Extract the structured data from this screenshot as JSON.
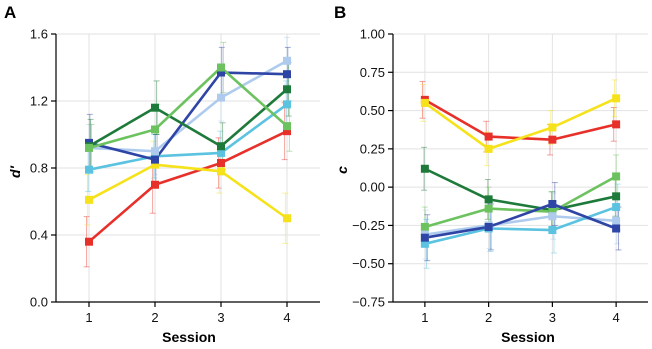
{
  "chart_data": [
    {
      "panel": "A",
      "type": "line",
      "title": "",
      "xlabel": "Session",
      "ylabel": "d′",
      "x": [
        1,
        2,
        3,
        4
      ],
      "xlim": [
        0.5,
        4.5
      ],
      "ylim": [
        0.0,
        1.6
      ],
      "yticks": [
        0.0,
        0.4,
        0.8,
        1.2,
        1.6
      ],
      "ytick_labels": [
        "0.0",
        "0.4",
        "0.8",
        "1.2",
        "1.6"
      ],
      "xtick_labels": [
        "1",
        "2",
        "3",
        "4"
      ],
      "grid": true,
      "series": [
        {
          "color": "#e8302a",
          "values": [
            0.36,
            0.7,
            0.83,
            1.02
          ],
          "err": [
            0.15,
            0.17,
            0.15,
            0.17
          ]
        },
        {
          "color": "#f5e21a",
          "values": [
            0.61,
            0.82,
            0.78,
            0.5
          ],
          "err": [
            0.15,
            0.14,
            0.13,
            0.15
          ]
        },
        {
          "color": "#5bc3e0",
          "values": [
            0.79,
            0.87,
            0.89,
            1.18
          ],
          "err": [
            0.13,
            0.13,
            0.13,
            0.14
          ]
        },
        {
          "color": "#aecbee",
          "values": [
            0.92,
            0.9,
            1.22,
            1.44
          ],
          "err": [
            0.14,
            0.14,
            0.14,
            0.14
          ]
        },
        {
          "color": "#2e45a6",
          "values": [
            0.95,
            0.85,
            1.37,
            1.36
          ],
          "err": [
            0.17,
            0.15,
            0.15,
            0.16
          ]
        },
        {
          "color": "#1e7a3a",
          "values": [
            0.93,
            1.16,
            0.93,
            1.27
          ],
          "err": [
            0.16,
            0.16,
            0.14,
            0.16
          ]
        },
        {
          "color": "#6cc25e",
          "values": [
            0.92,
            1.03,
            1.4,
            1.05
          ],
          "err": [
            0.14,
            0.15,
            0.15,
            0.15
          ]
        }
      ]
    },
    {
      "panel": "B",
      "type": "line",
      "title": "",
      "xlabel": "Session",
      "ylabel": "c",
      "x": [
        1,
        2,
        3,
        4
      ],
      "xlim": [
        0.5,
        4.5
      ],
      "ylim": [
        -0.75,
        1.0
      ],
      "yticks": [
        -0.75,
        -0.5,
        -0.25,
        0.0,
        0.25,
        0.5,
        0.75,
        1.0
      ],
      "ytick_labels": [
        "−0.75",
        "−0.50",
        "−0.25",
        "0.00",
        "0.25",
        "0.50",
        "0.75",
        "1.00"
      ],
      "xtick_labels": [
        "1",
        "2",
        "3",
        "4"
      ],
      "grid": true,
      "series": [
        {
          "color": "#e8302a",
          "values": [
            0.57,
            0.33,
            0.31,
            0.41
          ],
          "err": [
            0.12,
            0.1,
            0.1,
            0.11
          ]
        },
        {
          "color": "#f5e21a",
          "values": [
            0.55,
            0.25,
            0.39,
            0.58
          ],
          "err": [
            0.12,
            0.11,
            0.11,
            0.12
          ]
        },
        {
          "color": "#1e7a3a",
          "values": [
            0.12,
            -0.08,
            -0.15,
            -0.06
          ],
          "err": [
            0.14,
            0.13,
            0.12,
            0.13
          ]
        },
        {
          "color": "#6cc25e",
          "values": [
            -0.26,
            -0.14,
            -0.16,
            0.07
          ],
          "err": [
            0.13,
            0.14,
            0.13,
            0.14
          ]
        },
        {
          "color": "#aecbee",
          "values": [
            -0.31,
            -0.25,
            -0.19,
            -0.22
          ],
          "err": [
            0.16,
            0.15,
            0.15,
            0.15
          ]
        },
        {
          "color": "#5bc3e0",
          "values": [
            -0.37,
            -0.27,
            -0.28,
            -0.13
          ],
          "err": [
            0.16,
            0.15,
            0.15,
            0.15
          ]
        },
        {
          "color": "#2e45a6",
          "values": [
            -0.33,
            -0.26,
            -0.11,
            -0.27
          ],
          "err": [
            0.15,
            0.15,
            0.14,
            0.14
          ]
        }
      ]
    }
  ]
}
